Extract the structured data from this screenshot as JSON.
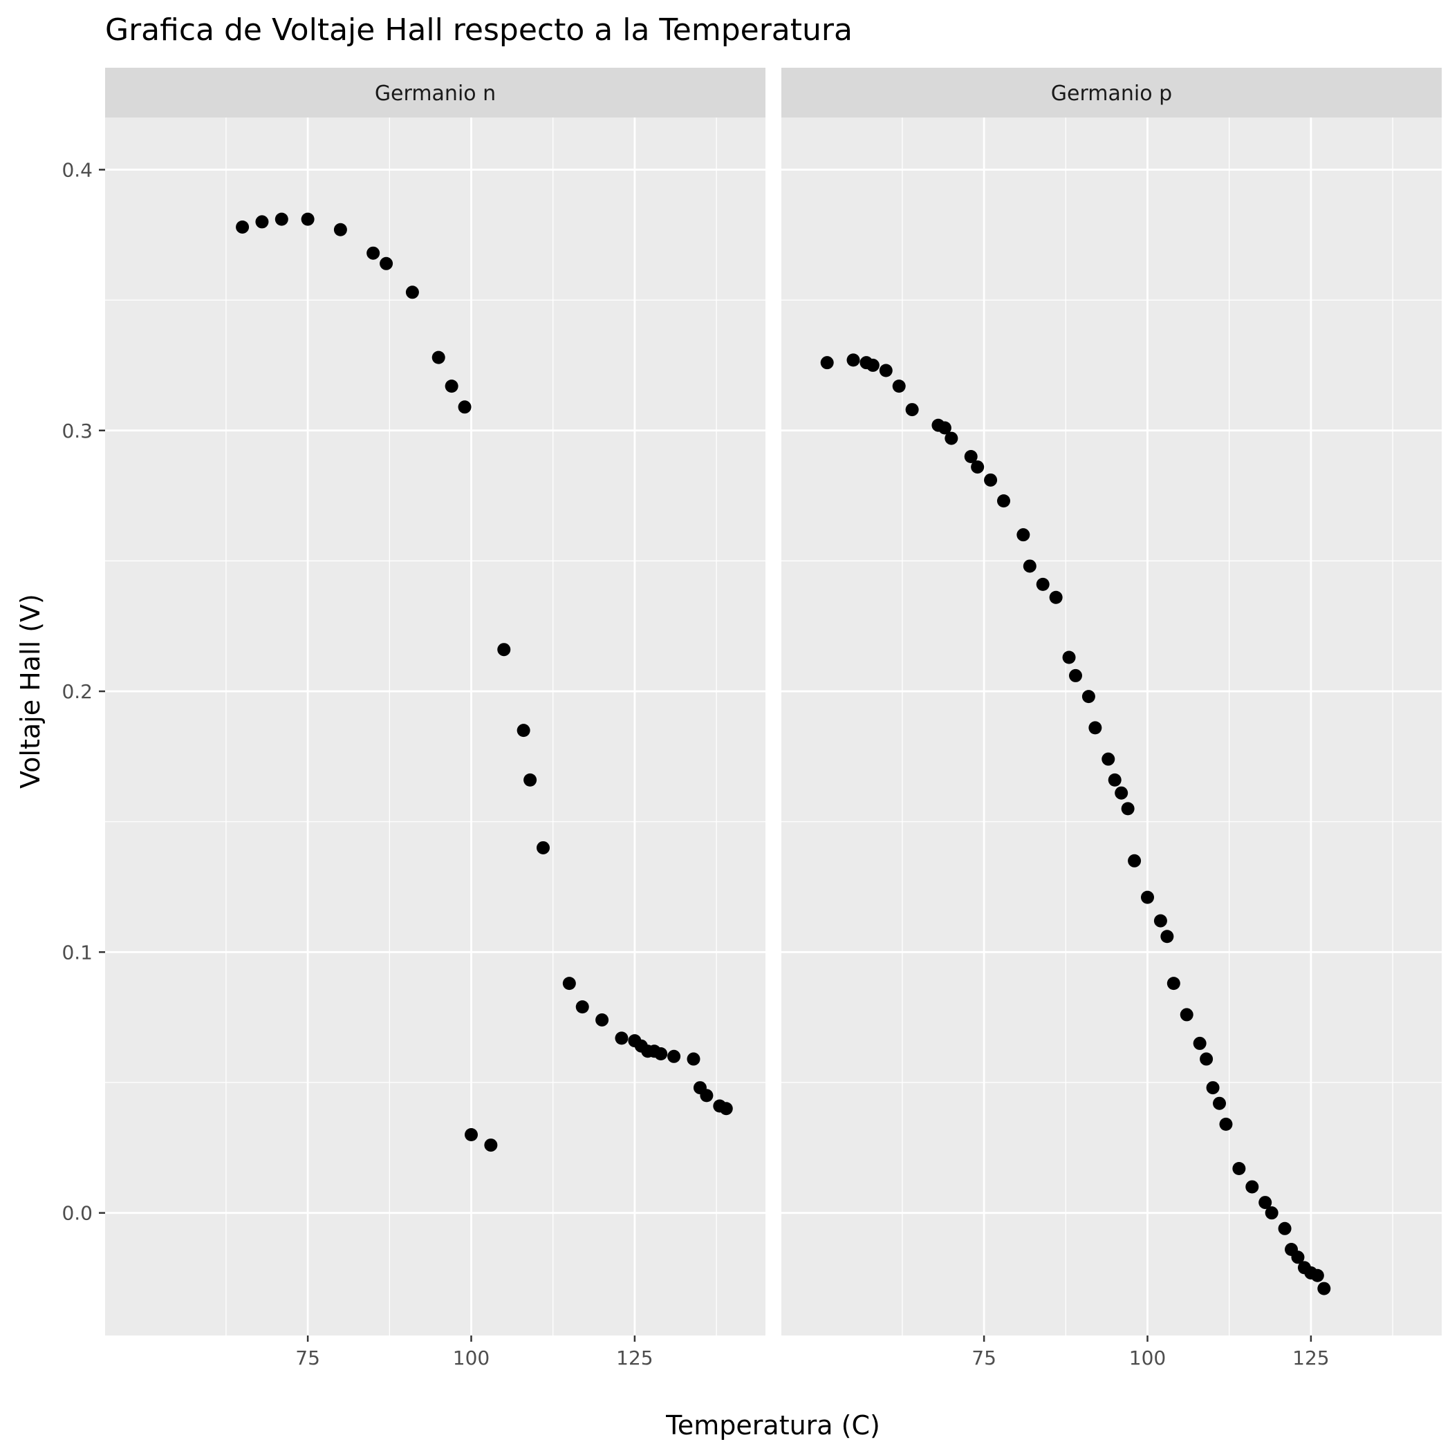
{
  "chart_data": {
    "type": "scatter",
    "title": "Grafica de Voltaje Hall respecto a la Temperatura",
    "xlabel": "Temperatura (C)",
    "ylabel": "Voltaje Hall (V)",
    "xlim": [
      44,
      145
    ],
    "ylim": [
      -0.047,
      0.42
    ],
    "x_ticks": [
      75,
      100,
      125
    ],
    "x_tick_labels": [
      "75",
      "100",
      "125"
    ],
    "y_ticks": [
      0.0,
      0.1,
      0.2,
      0.3,
      0.4
    ],
    "y_tick_labels": [
      "0.0",
      "0.1",
      "0.2",
      "0.3",
      "0.4"
    ],
    "grid": true,
    "background_color": "#ebebeb",
    "strip_color": "#d9d9d9",
    "grid_color": "#ffffff",
    "point_color": "#000000",
    "facets": [
      {
        "label": "Germanio n",
        "points": [
          [
            65,
            0.378
          ],
          [
            68,
            0.38
          ],
          [
            71,
            0.381
          ],
          [
            75,
            0.381
          ],
          [
            80,
            0.377
          ],
          [
            85,
            0.368
          ],
          [
            87,
            0.364
          ],
          [
            91,
            0.353
          ],
          [
            95,
            0.328
          ],
          [
            97,
            0.317
          ],
          [
            99,
            0.309
          ],
          [
            100,
            0.03
          ],
          [
            103,
            0.026
          ],
          [
            105,
            0.216
          ],
          [
            108,
            0.185
          ],
          [
            109,
            0.166
          ],
          [
            111,
            0.14
          ],
          [
            115,
            0.088
          ],
          [
            117,
            0.079
          ],
          [
            120,
            0.074
          ],
          [
            123,
            0.067
          ],
          [
            125,
            0.066
          ],
          [
            126,
            0.064
          ],
          [
            127,
            0.062
          ],
          [
            128,
            0.062
          ],
          [
            129,
            0.061
          ],
          [
            131,
            0.06
          ],
          [
            134,
            0.059
          ],
          [
            135,
            0.048
          ],
          [
            136,
            0.045
          ],
          [
            138,
            0.041
          ],
          [
            139,
            0.04
          ]
        ]
      },
      {
        "label": "Germanio p",
        "points": [
          [
            51,
            0.326
          ],
          [
            55,
            0.327
          ],
          [
            57,
            0.326
          ],
          [
            58,
            0.325
          ],
          [
            60,
            0.323
          ],
          [
            62,
            0.317
          ],
          [
            64,
            0.308
          ],
          [
            68,
            0.302
          ],
          [
            69,
            0.301
          ],
          [
            70,
            0.297
          ],
          [
            73,
            0.29
          ],
          [
            74,
            0.286
          ],
          [
            76,
            0.281
          ],
          [
            78,
            0.273
          ],
          [
            81,
            0.26
          ],
          [
            82,
            0.248
          ],
          [
            84,
            0.241
          ],
          [
            86,
            0.236
          ],
          [
            88,
            0.213
          ],
          [
            89,
            0.206
          ],
          [
            91,
            0.198
          ],
          [
            92,
            0.186
          ],
          [
            94,
            0.174
          ],
          [
            95,
            0.166
          ],
          [
            96,
            0.161
          ],
          [
            97,
            0.155
          ],
          [
            98,
            0.135
          ],
          [
            100,
            0.121
          ],
          [
            102,
            0.112
          ],
          [
            103,
            0.106
          ],
          [
            104,
            0.088
          ],
          [
            106,
            0.076
          ],
          [
            108,
            0.065
          ],
          [
            109,
            0.059
          ],
          [
            110,
            0.048
          ],
          [
            111,
            0.042
          ],
          [
            112,
            0.034
          ],
          [
            114,
            0.017
          ],
          [
            116,
            0.01
          ],
          [
            118,
            0.004
          ],
          [
            119,
            0.0
          ],
          [
            121,
            -0.006
          ],
          [
            122,
            -0.014
          ],
          [
            123,
            -0.017
          ],
          [
            124,
            -0.021
          ],
          [
            125,
            -0.023
          ],
          [
            126,
            -0.024
          ],
          [
            127,
            -0.029
          ]
        ]
      }
    ]
  }
}
